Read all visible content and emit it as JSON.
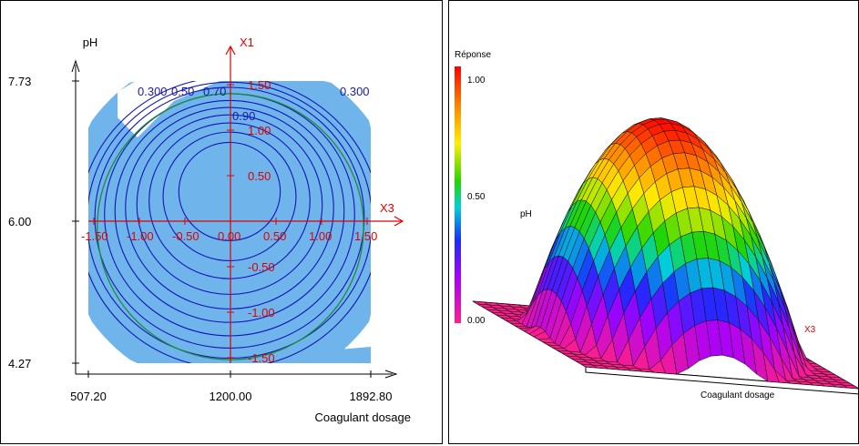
{
  "colors": {
    "feasible_region": "#6fb4ea",
    "contour": "#1515b8",
    "coded_axis": "#e00000",
    "boundary_circle": "#1f8a3a",
    "surface_base": "#e8336f"
  },
  "chart_data": [
    {
      "type": "contour",
      "xlabel": "Coagulant dosage",
      "ylabel": "pH",
      "x_ticks": [
        "507.20",
        "1200.00",
        "1892.80"
      ],
      "y_ticks": [
        "7.73",
        "6.00",
        "4.27"
      ],
      "xlim": [
        507.2,
        1892.8
      ],
      "ylim": [
        4.27,
        7.73
      ],
      "coded_axes": {
        "x_name": "X3",
        "y_name": "X1",
        "x_ticks": [
          "-1.50",
          "-1.00",
          "-0.50",
          "0.00",
          "0.50",
          "1.00",
          "1.50"
        ],
        "y_ticks": [
          "1.50",
          "1.00",
          "0.50",
          "-0.50",
          "-1.00",
          "-1.50"
        ]
      },
      "contour_labels": [
        "0.300",
        "0.50",
        "0.70",
        "0.90",
        "0.300"
      ],
      "contour_radii_coded": [
        0.58,
        0.76,
        0.92,
        1.06,
        1.19,
        1.31,
        1.43,
        1.54,
        1.63,
        1.72
      ],
      "boundary_circle_radius_coded": 1.68
    },
    {
      "type": "surface",
      "legend_title": "Réponse",
      "legend_ticks": [
        "1.00",
        "0.50",
        "0.00"
      ],
      "axis_labels": {
        "y": "pH",
        "x": "X3",
        "bottom": "Coagulant dosage"
      },
      "grid_steps": 24
    }
  ]
}
